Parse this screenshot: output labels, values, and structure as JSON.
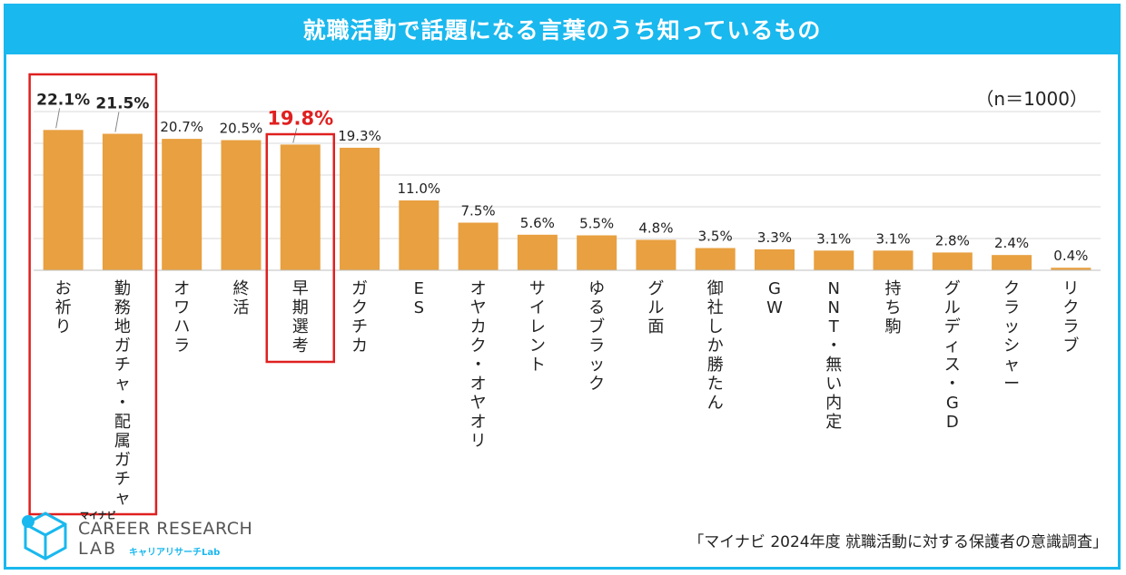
{
  "title": "就職活動で話題になる言葉のうち知っているもの",
  "sample_note": "（n＝1000）",
  "source": "「マイナビ 2024年度 就職活動に対する保護者の意識調査」",
  "logo": {
    "brand": "マイナビ",
    "line1": "CAREER RESEARCH",
    "line2": "LAB",
    "sub": "キャリアリサーチLab"
  },
  "colors": {
    "bar": "#e8a040",
    "accent": "#19b8ee",
    "highlight": "#e02020",
    "grid": "#d9d9d9"
  },
  "chart_data": {
    "type": "bar",
    "title": "就職活動で話題になる言葉のうち知っているもの",
    "categories": [
      "お祈り",
      "勤務地ガチャ・配属ガチャ",
      "オワハラ",
      "終活",
      "早期選考",
      "ガクチカ",
      "ES",
      "オヤカク・オヤオリ",
      "サイレント",
      "ゆるブラック",
      "グル面",
      "御社しか勝たん",
      "GW",
      "NNT・無い内定",
      "持ち駒",
      "グルディス・GD",
      "クラッシャー",
      "リクラブ"
    ],
    "values": [
      22.1,
      21.5,
      20.7,
      20.5,
      19.8,
      19.3,
      11.0,
      7.5,
      5.6,
      5.5,
      4.8,
      3.5,
      3.3,
      3.1,
      3.1,
      2.8,
      2.4,
      0.4
    ],
    "value_labels": [
      "22.1%",
      "21.5%",
      "20.7%",
      "20.5%",
      "19.8%",
      "19.3%",
      "11.0%",
      "7.5%",
      "5.6%",
      "5.5%",
      "4.8%",
      "3.5%",
      "3.3%",
      "3.1%",
      "3.1%",
      "2.8%",
      "2.4%",
      "0.4%"
    ],
    "highlight_bold": [
      0,
      1
    ],
    "highlight_red": [
      4
    ],
    "boxed_groups": [
      [
        0,
        1
      ],
      [
        4
      ]
    ],
    "ylim": [
      0,
      25
    ],
    "grid": true,
    "xlabel": "",
    "ylabel": ""
  }
}
